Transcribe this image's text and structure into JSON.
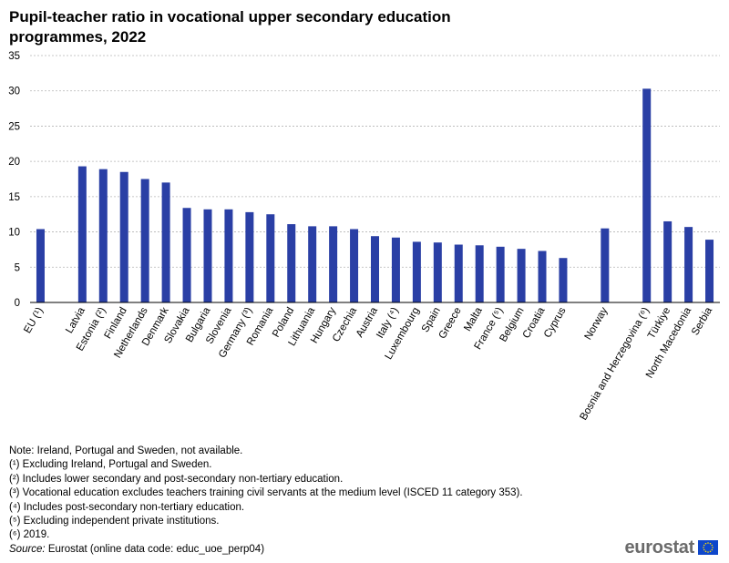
{
  "title_line1": "Pupil-teacher ratio in vocational upper secondary education",
  "title_line2": "programmes, 2022",
  "chart_data": {
    "type": "bar",
    "title": "Pupil-teacher ratio in vocational upper secondary education programmes, 2022",
    "xlabel": "",
    "ylabel": "",
    "ylim": [
      0,
      35
    ],
    "yticks": [
      0,
      5,
      10,
      15,
      20,
      25,
      30,
      35
    ],
    "grid": true,
    "bar_color": "#2a3fa5",
    "categories": [
      "EU (¹)",
      "",
      "Latvia",
      "Estonia (²)",
      "Finland",
      "Netherlands",
      "Denmark",
      "Slovakia",
      "Bulgaria",
      "Slovenia",
      "Germany (³)",
      "Romania",
      "Poland",
      "Lithuania",
      "Hungary",
      "Czechia",
      "Austria",
      "Italy (⁴)",
      "Luxembourg",
      "Spain",
      "Greece",
      "Malta",
      "France (⁵)",
      "Belgium",
      "Croatia",
      "Cyprus",
      "",
      "Norway",
      "",
      "Bosnia and Herzegovina (⁶)",
      "Türkiye",
      "North Macedonia",
      "Serbia"
    ],
    "values": [
      10.4,
      null,
      19.3,
      18.9,
      18.5,
      17.5,
      17.0,
      13.4,
      13.2,
      13.2,
      12.8,
      12.5,
      11.1,
      10.8,
      10.8,
      10.4,
      9.4,
      9.2,
      8.6,
      8.5,
      8.2,
      8.1,
      7.9,
      7.6,
      7.3,
      6.3,
      null,
      10.5,
      null,
      30.3,
      11.5,
      10.7,
      8.9
    ]
  },
  "notes": [
    "Note: Ireland,  Portugal and Sweden, not available.",
    "(¹) Excluding Ireland,  Portugal and Sweden.",
    "(²) Includes  lower secondary and post-secondary non-tertiary  education.",
    "(³) Vocational education excludes teachers training civil servants at the medium level (ISCED 11 category 353).",
    "(⁴) Includes  post-secondary  non-tertiary  education.",
    "(⁵) Excluding independent private institutions.",
    "(⁶) 2019."
  ],
  "source_label": "Source:",
  "source_text": " Eurostat (online data code: educ_uoe_perp04)",
  "logo_text": "eurostat",
  "logo_colors": {
    "flag": "#0e47cb",
    "stars": "#ffdd00"
  }
}
